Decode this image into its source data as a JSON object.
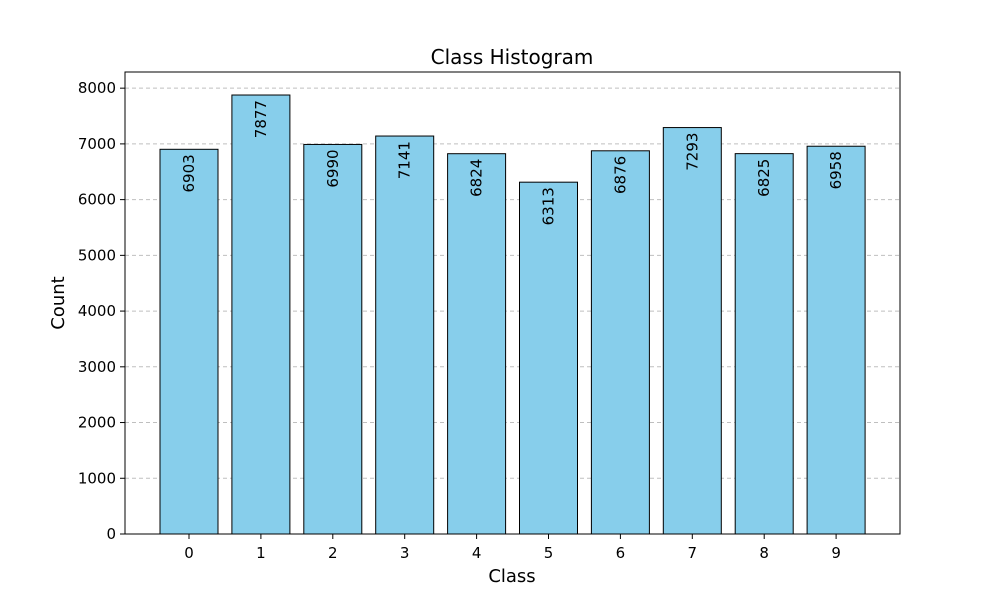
{
  "chart_data": {
    "type": "bar",
    "title": "Class Histogram",
    "xlabel": "Class",
    "ylabel": "Count",
    "categories": [
      "0",
      "1",
      "2",
      "3",
      "4",
      "5",
      "6",
      "7",
      "8",
      "9"
    ],
    "values": [
      6903,
      7877,
      6990,
      7141,
      6824,
      6313,
      6876,
      7293,
      6825,
      6958
    ],
    "data_labels": [
      "6903",
      "7877",
      "6990",
      "7141",
      "6824",
      "6313",
      "6876",
      "7293",
      "6825",
      "6958"
    ],
    "ylim": [
      0,
      8290
    ],
    "yticks": [
      0,
      1000,
      2000,
      3000,
      4000,
      5000,
      6000,
      7000,
      8000
    ],
    "ytick_labels": [
      "0",
      "1000",
      "2000",
      "3000",
      "4000",
      "5000",
      "6000",
      "7000",
      "8000"
    ],
    "grid": "y-dashed",
    "legend": "none",
    "bar_color": "#87ceeb",
    "edge_color": "#000000"
  }
}
